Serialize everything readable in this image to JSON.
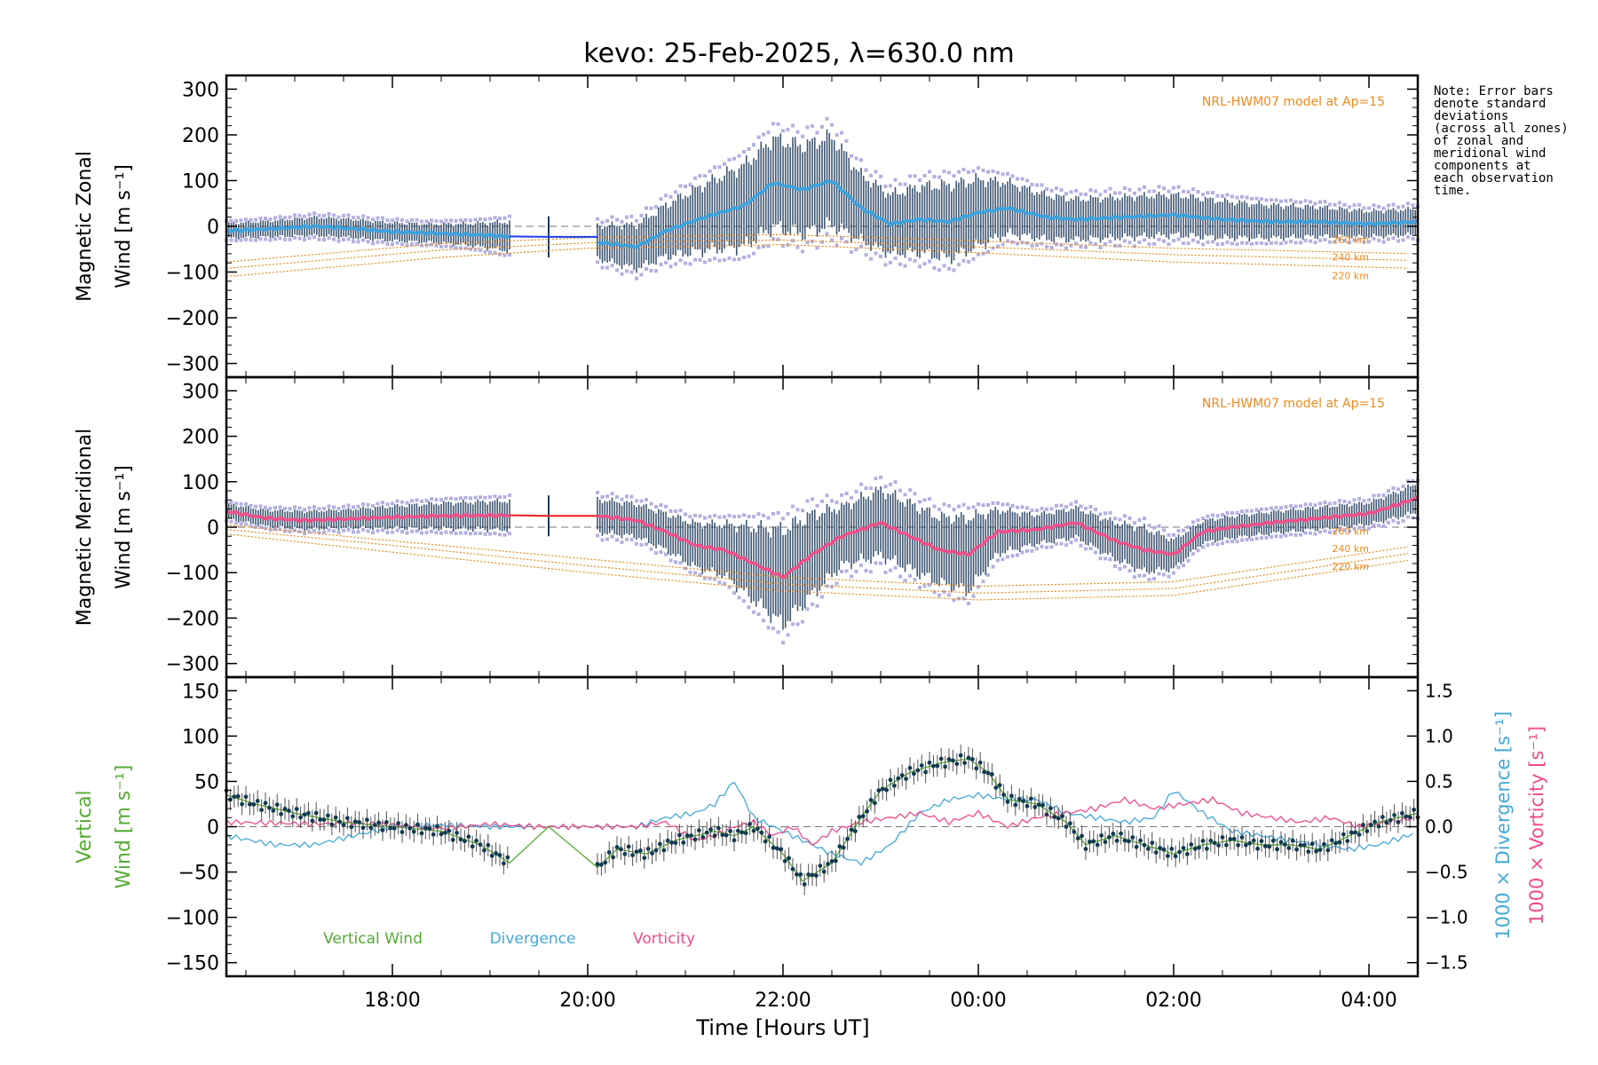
{
  "title": "kevo: 25-Feb-2025, λ=630.0 nm",
  "x_axis": {
    "label": "Time [Hours UT]",
    "tick_labels": [
      "18:00",
      "20:00",
      "22:00",
      "00:00",
      "02:00",
      "04:00"
    ],
    "tick_hours": [
      18,
      20,
      22,
      24,
      26,
      28
    ],
    "range_hours": [
      16.3,
      28.5
    ]
  },
  "note_lines": [
    "Note: Error bars",
    "denote standard",
    "deviations",
    "(across all zones)",
    "of zonal and",
    "meridional wind",
    "components at",
    "each observation",
    "time."
  ],
  "colors": {
    "zonal_line": "#3aa3e0",
    "zonal_gap": "#1f3fe8",
    "meridional_line": "#f0508a",
    "meridional_gap": "#ee2020",
    "scatter": "#b4b0e2",
    "error_bar": "#1e3a5a",
    "model": "#ee8a20",
    "vertical": "#55aa33",
    "divergence": "#44a8d8",
    "vorticity": "#f04a8c",
    "vertical_points": "#123a50"
  },
  "chart_data": [
    {
      "type": "line",
      "panel": "zonal",
      "ylabel_line1": "Magnetic Zonal",
      "ylabel_line2": "Wind [m s⁻¹]",
      "ylim": [
        -330,
        330
      ],
      "yticks": [
        300,
        200,
        100,
        0,
        -100,
        -200,
        -300
      ],
      "model_label": "NRL-HWM07 model at Ap=15",
      "model_altitudes": [
        "260 km",
        "240 km",
        "220 km"
      ],
      "x": [
        16.3,
        16.8,
        17.2,
        17.6,
        18.0,
        18.4,
        18.8,
        19.2,
        20.1,
        20.5,
        20.8,
        21.2,
        21.6,
        21.9,
        22.2,
        22.5,
        22.8,
        23.1,
        23.4,
        23.7,
        24.0,
        24.3,
        24.7,
        25.0,
        25.5,
        26.0,
        26.5,
        27.0,
        27.5,
        28.0,
        28.5
      ],
      "mean": [
        -10,
        -5,
        0,
        -5,
        -12,
        -15,
        -18,
        -22,
        -35,
        -45,
        -10,
        20,
        45,
        95,
        80,
        100,
        40,
        5,
        15,
        10,
        30,
        40,
        20,
        15,
        20,
        25,
        15,
        10,
        10,
        5,
        10
      ],
      "spread": [
        20,
        22,
        25,
        25,
        25,
        25,
        30,
        40,
        45,
        60,
        70,
        90,
        110,
        120,
        120,
        120,
        90,
        80,
        90,
        100,
        90,
        70,
        60,
        55,
        55,
        55,
        50,
        45,
        40,
        35,
        35
      ],
      "gap": {
        "x": [
          19.2,
          19.6,
          20.1
        ],
        "y": [
          -22,
          -23,
          -23
        ]
      },
      "models": [
        {
          "altitude": "260 km",
          "x": [
            16.3,
            18.5,
            20.0,
            22.0,
            24.0,
            26.0,
            28.5
          ],
          "y": [
            -78,
            -38,
            -25,
            -18,
            -32,
            -48,
            -60
          ]
        },
        {
          "altitude": "240 km",
          "x": [
            16.3,
            18.5,
            20.0,
            22.0,
            24.0,
            26.0,
            28.5
          ],
          "y": [
            -92,
            -52,
            -36,
            -30,
            -45,
            -62,
            -75
          ]
        },
        {
          "altitude": "220 km",
          "x": [
            16.3,
            18.5,
            20.0,
            22.0,
            24.0,
            26.0,
            28.5
          ],
          "y": [
            -110,
            -68,
            -48,
            -40,
            -58,
            -78,
            -92
          ]
        }
      ]
    },
    {
      "type": "line",
      "panel": "meridional",
      "ylabel_line1": "Magnetic Meridional",
      "ylabel_line2": "Wind [m s⁻¹]",
      "ylim": [
        -330,
        330
      ],
      "yticks": [
        300,
        200,
        100,
        0,
        -100,
        -200,
        -300
      ],
      "model_label": "NRL-HWM07 model at Ap=15",
      "model_altitudes": [
        "260 km",
        "240 km",
        "220 km"
      ],
      "x": [
        16.3,
        16.7,
        17.1,
        17.5,
        18.0,
        18.5,
        19.2,
        20.1,
        20.5,
        20.8,
        21.1,
        21.4,
        21.7,
        22.0,
        22.3,
        22.6,
        23.0,
        23.3,
        23.6,
        23.9,
        24.2,
        24.6,
        25.0,
        25.4,
        25.7,
        26.0,
        26.3,
        26.6,
        27.0,
        27.5,
        28.0,
        28.3,
        28.5
      ],
      "mean": [
        35,
        20,
        15,
        18,
        22,
        25,
        26,
        25,
        15,
        -10,
        -40,
        -50,
        -80,
        -110,
        -60,
        -20,
        10,
        -20,
        -50,
        -60,
        -10,
        -5,
        10,
        -30,
        -50,
        -60,
        -10,
        0,
        10,
        20,
        30,
        50,
        65
      ],
      "spread": [
        20,
        22,
        25,
        25,
        30,
        35,
        40,
        45,
        45,
        50,
        60,
        70,
        100,
        130,
        110,
        80,
        90,
        90,
        90,
        100,
        60,
        40,
        40,
        50,
        60,
        40,
        30,
        30,
        30,
        30,
        30,
        35,
        40
      ],
      "gap": {
        "x": [
          19.2,
          19.6,
          20.1
        ],
        "y": [
          26,
          25,
          25
        ]
      },
      "models": [
        {
          "altitude": "260 km",
          "x": [
            16.3,
            18.0,
            20.0,
            22.0,
            24.0,
            26.0,
            28.5
          ],
          "y": [
            5,
            -30,
            -70,
            -110,
            -130,
            -120,
            -40
          ]
        },
        {
          "altitude": "240 km",
          "x": [
            16.3,
            18.0,
            20.0,
            22.0,
            24.0,
            26.0,
            28.5
          ],
          "y": [
            -5,
            -40,
            -85,
            -125,
            -145,
            -135,
            -55
          ]
        },
        {
          "altitude": "220 km",
          "x": [
            16.3,
            18.0,
            20.0,
            22.0,
            24.0,
            26.0,
            28.5
          ],
          "y": [
            -15,
            -55,
            -100,
            -140,
            -160,
            -150,
            -70
          ]
        }
      ]
    },
    {
      "type": "line",
      "panel": "vertical",
      "ylabel_line1": "Vertical",
      "ylabel_line2": "Wind [m s⁻¹]",
      "ylim": [
        -165,
        165
      ],
      "yticks": [
        150,
        100,
        50,
        0,
        -50,
        -100,
        -150
      ],
      "right_ylim": [
        -1.65,
        1.65
      ],
      "right_yticks": [
        1.5,
        1.0,
        0.5,
        0.0,
        -0.5,
        -1.0,
        -1.5
      ],
      "right_tick_labels": [
        "1.5",
        "1.0",
        "0.5",
        "0.0",
        "−0.5",
        "−1.0",
        "−1.5"
      ],
      "right_label_divergence": "1000 × Divergence [s⁻¹]",
      "right_label_vorticity": "1000 × Vorticity [s⁻¹]",
      "legend": [
        "Vertical Wind",
        "Divergence",
        "Vorticity"
      ],
      "series": [
        {
          "name": "Vertical Wind",
          "axis": "left",
          "x": [
            16.3,
            16.6,
            17.0,
            17.5,
            18.0,
            18.5,
            18.9,
            19.2,
            19.6,
            20.1,
            20.3,
            20.6,
            20.9,
            21.1,
            21.3,
            21.5,
            21.7,
            22.0,
            22.2,
            22.5,
            22.8,
            23.0,
            23.3,
            23.6,
            23.9,
            24.1,
            24.3,
            24.6,
            24.9,
            25.1,
            25.4,
            25.7,
            26.0,
            26.3,
            26.6,
            26.9,
            27.2,
            27.5,
            27.8,
            28.1,
            28.3,
            28.5
          ],
          "y": [
            35,
            25,
            15,
            5,
            0,
            -5,
            -20,
            -40,
            0,
            -45,
            -25,
            -30,
            -15,
            -10,
            -5,
            -10,
            0,
            -30,
            -60,
            -40,
            10,
            40,
            60,
            70,
            75,
            60,
            30,
            25,
            5,
            -20,
            -10,
            -20,
            -30,
            -20,
            -15,
            -20,
            -20,
            -25,
            -10,
            5,
            10,
            15
          ]
        },
        {
          "name": "Divergence",
          "axis": "right",
          "x": [
            16.3,
            16.8,
            17.2,
            17.6,
            18.0,
            18.5,
            19.0,
            19.5,
            20.0,
            20.5,
            20.8,
            21.1,
            21.3,
            21.5,
            21.7,
            21.9,
            22.1,
            22.3,
            22.5,
            22.8,
            23.1,
            23.4,
            23.7,
            24.0,
            24.3,
            24.6,
            24.9,
            25.2,
            25.5,
            25.8,
            26.0,
            26.3,
            26.6,
            26.9,
            27.2,
            27.5,
            27.8,
            28.1,
            28.4,
            28.5
          ],
          "y": [
            -0.1,
            -0.2,
            -0.2,
            -0.1,
            0.0,
            0.02,
            0.0,
            0.0,
            0.0,
            0.0,
            0.1,
            0.15,
            0.25,
            0.5,
            0.1,
            0.0,
            -0.1,
            -0.2,
            -0.3,
            -0.4,
            -0.2,
            0.15,
            0.3,
            0.35,
            0.3,
            0.3,
            0.15,
            0.1,
            0.05,
            0.1,
            0.4,
            0.15,
            -0.05,
            -0.1,
            -0.15,
            -0.2,
            -0.25,
            -0.2,
            -0.1,
            -0.05
          ]
        },
        {
          "name": "Vorticity",
          "axis": "right",
          "x": [
            16.3,
            16.8,
            17.2,
            17.6,
            18.0,
            18.5,
            19.0,
            19.5,
            20.0,
            20.5,
            20.8,
            21.1,
            21.3,
            21.5,
            21.7,
            21.9,
            22.1,
            22.3,
            22.5,
            22.8,
            23.1,
            23.4,
            23.7,
            24.0,
            24.3,
            24.6,
            24.9,
            25.2,
            25.5,
            25.8,
            26.1,
            26.4,
            26.7,
            27.0,
            27.3,
            27.6,
            27.9,
            28.2,
            28.5
          ],
          "y": [
            0.05,
            0.04,
            0.03,
            0.04,
            0.02,
            -0.02,
            0.03,
            0.0,
            0.0,
            0.0,
            0.05,
            -0.15,
            -0.1,
            0.0,
            0.05,
            -0.1,
            0.0,
            -0.2,
            -0.05,
            0.05,
            0.1,
            0.15,
            0.05,
            0.15,
            0.0,
            0.1,
            0.15,
            0.2,
            0.3,
            0.2,
            0.25,
            0.3,
            0.15,
            0.1,
            0.05,
            0.1,
            0.0,
            0.05,
            0.1
          ]
        }
      ]
    }
  ]
}
